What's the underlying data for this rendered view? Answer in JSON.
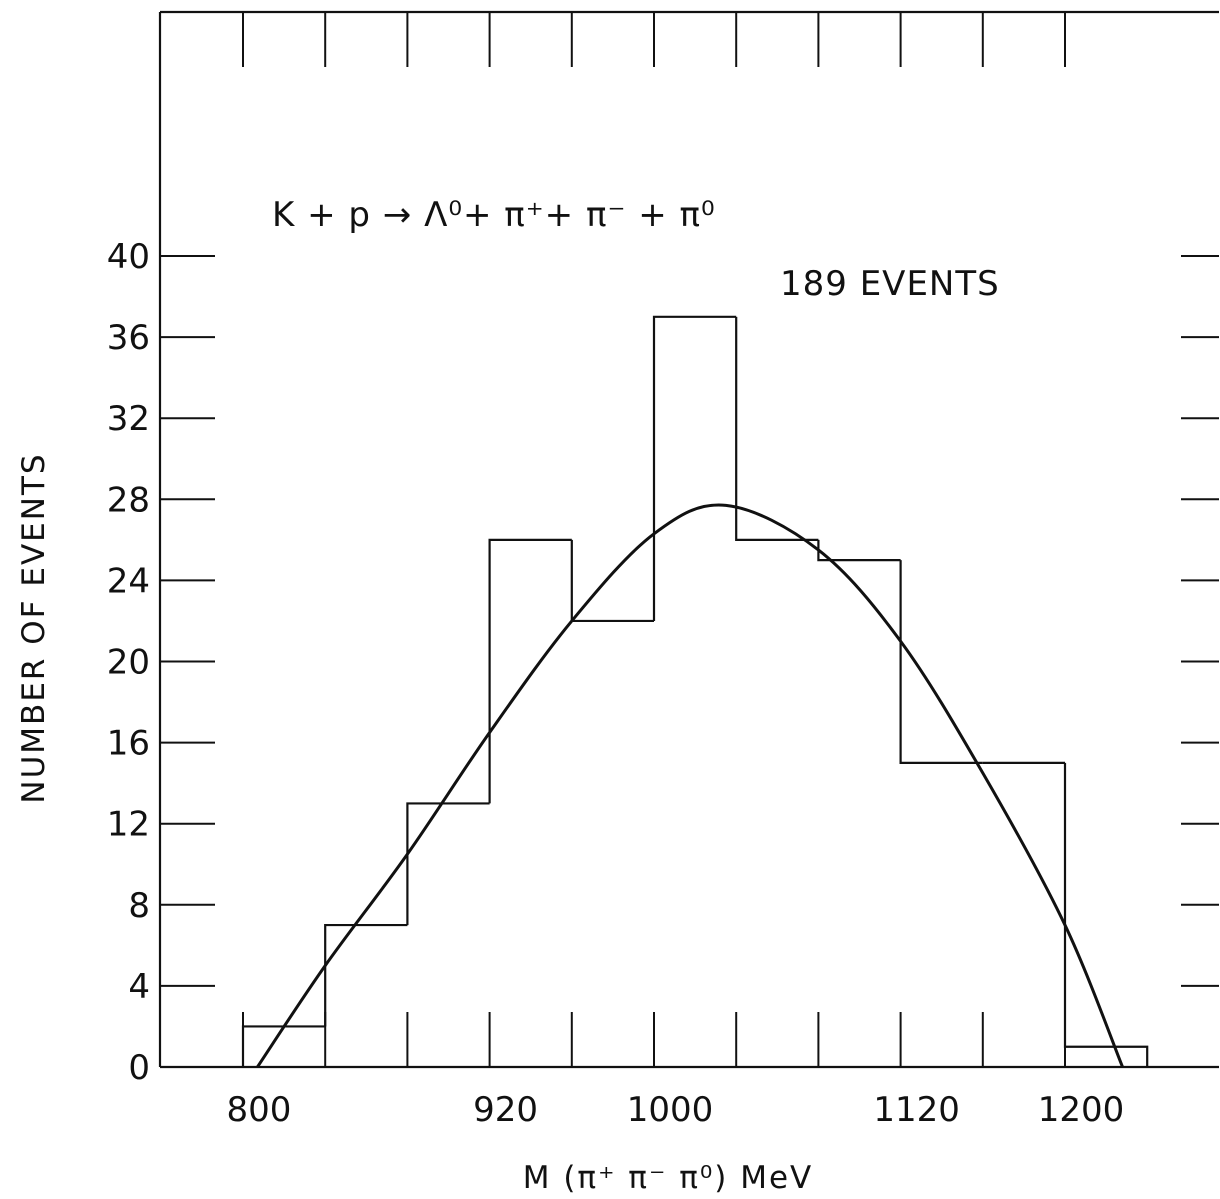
{
  "chart_data": {
    "type": "histogram",
    "title": "",
    "xlabel": "M (π⁺ π⁻ π⁰) MeV",
    "ylabel": "NUMBER OF EVENTS",
    "xlim": [
      760,
      1240
    ],
    "ylim": [
      0,
      40
    ],
    "x_tick_labels": [
      "800",
      "920",
      "1000",
      "1120",
      "1200"
    ],
    "x_tick_values": [
      800,
      920,
      1000,
      1120,
      1200
    ],
    "y_ticks": [
      0,
      4,
      8,
      12,
      16,
      20,
      24,
      28,
      32,
      36,
      40
    ],
    "bin_edges": [
      800,
      840,
      880,
      920,
      960,
      1000,
      1040,
      1080,
      1120,
      1160,
      1200,
      1240
    ],
    "values": [
      2,
      7,
      13,
      26,
      22,
      37,
      26,
      25,
      15,
      15,
      1
    ],
    "fit_curve": {
      "x": [
        807,
        840,
        880,
        920,
        960,
        1000,
        1035,
        1080,
        1120,
        1160,
        1200,
        1228
      ],
      "y": [
        0,
        5,
        10.5,
        16.5,
        22,
        26.3,
        27.7,
        25.5,
        21,
        14.5,
        7,
        0
      ]
    },
    "annotations": {
      "reaction": "K + p → Λ⁰+ π⁺+ π⁻ + π⁰",
      "events": "189 EVENTS"
    }
  }
}
